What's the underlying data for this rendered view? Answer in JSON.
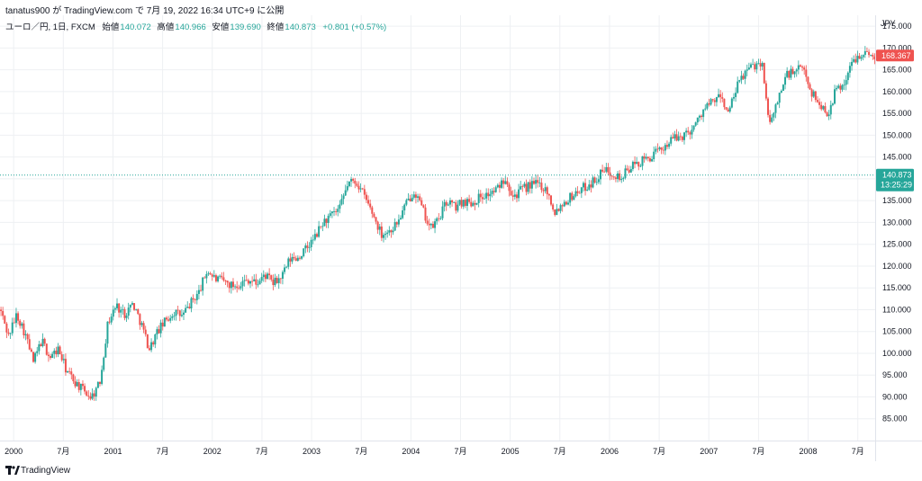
{
  "header": {
    "publish_line": "tanatus900 が TradingView.com で 7月 19, 2022 16:34 UTC+9 に公開"
  },
  "legend": {
    "symbol": "ユーロ／円, 1日, FXCM",
    "open_label": "始値",
    "open_value": "140.072",
    "high_label": "高値",
    "high_value": "140.966",
    "low_label": "安値",
    "low_value": "139.690",
    "close_label": "終値",
    "close_value": "140.873",
    "change": "+0.801 (+0.57%)"
  },
  "footer": {
    "brand": "TradingView"
  },
  "colors": {
    "up": "#26a69a",
    "down": "#ef5350",
    "grid": "#eef0f3",
    "text": "#131722"
  },
  "chart_data": {
    "type": "candlestick",
    "title": "ユーロ／円, 1日, FXCM",
    "currency": "JPY",
    "xlabel": "",
    "ylabel": "",
    "ylim": [
      80.0,
      177.5
    ],
    "y_ticks": [
      "175.000",
      "170.000",
      "165.000",
      "160.000",
      "155.000",
      "150.000",
      "145.000",
      "140.000",
      "135.000",
      "130.000",
      "125.000",
      "120.000",
      "115.000",
      "110.000",
      "105.000",
      "100.000",
      "95.000",
      "90.000",
      "85.000"
    ],
    "x_ticks": [
      {
        "label": "2000",
        "date": "2000-01"
      },
      {
        "label": "7月",
        "date": "2000-07"
      },
      {
        "label": "2001",
        "date": "2001-01"
      },
      {
        "label": "7月",
        "date": "2001-07"
      },
      {
        "label": "2002",
        "date": "2002-01"
      },
      {
        "label": "7月",
        "date": "2002-07"
      },
      {
        "label": "2003",
        "date": "2003-01"
      },
      {
        "label": "7月",
        "date": "2003-07"
      },
      {
        "label": "2004",
        "date": "2004-01"
      },
      {
        "label": "7月",
        "date": "2004-07"
      },
      {
        "label": "2005",
        "date": "2005-01"
      },
      {
        "label": "7月",
        "date": "2005-07"
      },
      {
        "label": "2006",
        "date": "2006-01"
      },
      {
        "label": "7月",
        "date": "2006-07"
      },
      {
        "label": "2007",
        "date": "2007-01"
      },
      {
        "label": "7月",
        "date": "2007-07"
      },
      {
        "label": "2008",
        "date": "2008-01"
      },
      {
        "label": "7月",
        "date": "2008-07"
      }
    ],
    "x_range": [
      "1999-11",
      "2008-09"
    ],
    "grid": true,
    "approx_path": [
      [
        "1999-11",
        110.0
      ],
      [
        "1999-12",
        104.0
      ],
      [
        "2000-01",
        109.0
      ],
      [
        "2000-02",
        104.5
      ],
      [
        "2000-03",
        98.0
      ],
      [
        "2000-04",
        103.0
      ],
      [
        "2000-05",
        99.0
      ],
      [
        "2000-06",
        101.0
      ],
      [
        "2000-07",
        96.0
      ],
      [
        "2000-08",
        93.5
      ],
      [
        "2000-09",
        91.5
      ],
      [
        "2000-10",
        90.0
      ],
      [
        "2000-11",
        93.0
      ],
      [
        "2000-12",
        107.0
      ],
      [
        "2001-01",
        111.0
      ],
      [
        "2001-02",
        109.0
      ],
      [
        "2001-03",
        111.5
      ],
      [
        "2001-04",
        107.0
      ],
      [
        "2001-05",
        101.0
      ],
      [
        "2001-06",
        105.0
      ],
      [
        "2001-07",
        107.5
      ],
      [
        "2001-08",
        109.5
      ],
      [
        "2001-09",
        108.5
      ],
      [
        "2001-10",
        111.5
      ],
      [
        "2001-11",
        114.0
      ],
      [
        "2001-12",
        119.0
      ],
      [
        "2002-01",
        117.0
      ],
      [
        "2002-02",
        116.5
      ],
      [
        "2002-03",
        115.5
      ],
      [
        "2002-04",
        116.0
      ],
      [
        "2002-05",
        117.0
      ],
      [
        "2002-06",
        116.0
      ],
      [
        "2002-07",
        118.0
      ],
      [
        "2002-08",
        116.0
      ],
      [
        "2002-09",
        117.5
      ],
      [
        "2002-10",
        121.5
      ],
      [
        "2002-11",
        122.0
      ],
      [
        "2002-12",
        124.0
      ],
      [
        "2003-01",
        126.5
      ],
      [
        "2003-02",
        130.0
      ],
      [
        "2003-03",
        131.5
      ],
      [
        "2003-04",
        133.0
      ],
      [
        "2003-05",
        139.0
      ],
      [
        "2003-06",
        139.5
      ],
      [
        "2003-07",
        136.0
      ],
      [
        "2003-08",
        132.0
      ],
      [
        "2003-09",
        127.5
      ],
      [
        "2003-10",
        128.0
      ],
      [
        "2003-11",
        130.0
      ],
      [
        "2003-12",
        134.0
      ],
      [
        "2004-01",
        137.5
      ],
      [
        "2004-02",
        133.0
      ],
      [
        "2004-03",
        128.5
      ],
      [
        "2004-04",
        131.0
      ],
      [
        "2004-05",
        135.0
      ],
      [
        "2004-06",
        133.5
      ],
      [
        "2004-07",
        135.0
      ],
      [
        "2004-08",
        134.5
      ],
      [
        "2004-09",
        136.0
      ],
      [
        "2004-10",
        136.5
      ],
      [
        "2004-11",
        137.5
      ],
      [
        "2004-12",
        140.5
      ],
      [
        "2005-01",
        136.0
      ],
      [
        "2005-02",
        137.5
      ],
      [
        "2005-03",
        138.5
      ],
      [
        "2005-04",
        139.0
      ],
      [
        "2005-05",
        137.5
      ],
      [
        "2005-06",
        132.5
      ],
      [
        "2005-07",
        134.5
      ],
      [
        "2005-08",
        136.0
      ],
      [
        "2005-09",
        137.5
      ],
      [
        "2005-10",
        138.5
      ],
      [
        "2005-11",
        140.0
      ],
      [
        "2005-12",
        142.0
      ],
      [
        "2006-01",
        141.5
      ],
      [
        "2006-02",
        140.0
      ],
      [
        "2006-03",
        142.5
      ],
      [
        "2006-04",
        143.5
      ],
      [
        "2006-05",
        144.5
      ],
      [
        "2006-06",
        145.5
      ],
      [
        "2006-07",
        147.0
      ],
      [
        "2006-08",
        149.0
      ],
      [
        "2006-09",
        149.5
      ],
      [
        "2006-10",
        150.5
      ],
      [
        "2006-11",
        152.5
      ],
      [
        "2006-12",
        156.0
      ],
      [
        "2007-01",
        157.5
      ],
      [
        "2007-02",
        159.0
      ],
      [
        "2007-03",
        155.0
      ],
      [
        "2007-04",
        161.0
      ],
      [
        "2007-05",
        164.5
      ],
      [
        "2007-06",
        166.0
      ],
      [
        "2007-07",
        167.0
      ],
      [
        "2007-08",
        152.0
      ],
      [
        "2007-09",
        158.5
      ],
      [
        "2007-10",
        164.0
      ],
      [
        "2007-11",
        164.5
      ],
      [
        "2007-12",
        165.5
      ],
      [
        "2008-01",
        160.0
      ],
      [
        "2008-02",
        157.0
      ],
      [
        "2008-03",
        155.0
      ],
      [
        "2008-04",
        160.5
      ],
      [
        "2008-05",
        162.0
      ],
      [
        "2008-06",
        167.0
      ],
      [
        "2008-07",
        169.0
      ],
      [
        "2008-08",
        168.4
      ]
    ],
    "last_price": {
      "value": "168.367",
      "color": "#ef5350"
    },
    "price_line": {
      "value": "140.873",
      "countdown": "13:25:29",
      "color": "#26a69a"
    }
  }
}
